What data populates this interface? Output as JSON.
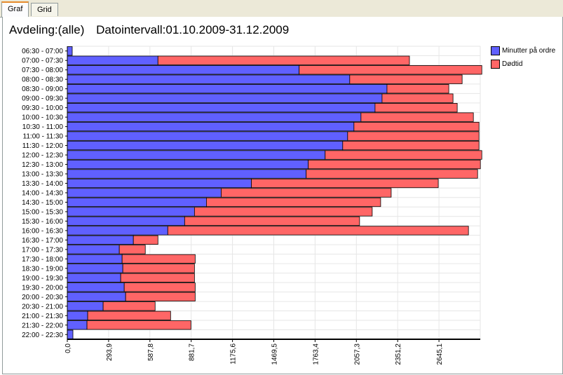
{
  "tabs": [
    {
      "label": "Graf",
      "active": true
    },
    {
      "label": "Grid",
      "active": false
    }
  ],
  "header": {
    "department": "Avdeling:(alle)",
    "interval": "Datointervall:01.10.2009-31.12.2009"
  },
  "colors": {
    "minutter": "#6060ff",
    "dodtid": "#ff6666",
    "grid": "#e6e6e6"
  },
  "chart_data": {
    "type": "bar",
    "orientation": "horizontal",
    "stacked": true,
    "categories": [
      "06:30 - 07:00",
      "07:00 - 07:30",
      "07:30 - 08:00",
      "08:00 - 08:30",
      "08:30 - 09:00",
      "09:00 - 09:30",
      "09:30 - 10:00",
      "10:00 - 10:30",
      "10:30 - 11:00",
      "11:00 - 11:30",
      "11:30 - 12:00",
      "12:00 - 12:30",
      "12:30 - 13:00",
      "13:00 - 13:30",
      "13:30 - 14:00",
      "14:00 - 14:30",
      "14:30 - 15:00",
      "15:00 - 15:30",
      "15:30 - 16:00",
      "16:00 - 16:30",
      "16:30 - 17:00",
      "17:00 - 17:30",
      "17:30 - 18:00",
      "18:30 - 19:00",
      "19:00 - 19:30",
      "19:30 - 20:00",
      "20:00 - 20:30",
      "20:30 - 21:00",
      "21:00 - 21:30",
      "21:30 - 22:00",
      "22:00 - 22:30"
    ],
    "series": [
      {
        "name": "Minutter på ordre",
        "values": [
          35,
          645,
          1650,
          2010,
          2275,
          2240,
          2190,
          2090,
          2040,
          1995,
          1960,
          1835,
          1715,
          1700,
          1310,
          1095,
          990,
          905,
          835,
          715,
          470,
          370,
          390,
          395,
          380,
          405,
          415,
          255,
          145,
          140,
          40
        ]
      },
      {
        "name": "Dødtid",
        "values": [
          0,
          1790,
          1300,
          800,
          440,
          505,
          585,
          800,
          890,
          935,
          970,
          1115,
          1225,
          1220,
          1330,
          1210,
          1240,
          1265,
          1245,
          2140,
          175,
          185,
          520,
          510,
          525,
          505,
          495,
          370,
          590,
          740,
          0
        ]
      }
    ],
    "xticks": [
      "0,0",
      "293,9",
      "587,8",
      "881,7",
      "1175,6",
      "1469,5",
      "1763,4",
      "2057,3",
      "2351,2",
      "2645,1"
    ],
    "xlim": [
      0,
      2939
    ],
    "legend_position": "right",
    "grid": true
  }
}
